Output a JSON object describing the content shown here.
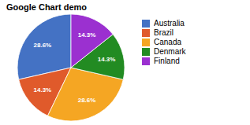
{
  "chart_data": {
    "type": "pie",
    "title": "Google Chart demo",
    "categories": [
      "Australia",
      "Brazil",
      "Canada",
      "Denmark",
      "Finland"
    ],
    "values": [
      28.6,
      14.3,
      28.6,
      14.3,
      14.3
    ],
    "value_labels": [
      "28.6%",
      "14.3%",
      "28.6%",
      "14.3%",
      "14.3%"
    ],
    "colors": [
      "#4472C4",
      "#E05A2B",
      "#F5A623",
      "#228B22",
      "#9B30D0"
    ],
    "data_labels": true,
    "legend": "right"
  }
}
